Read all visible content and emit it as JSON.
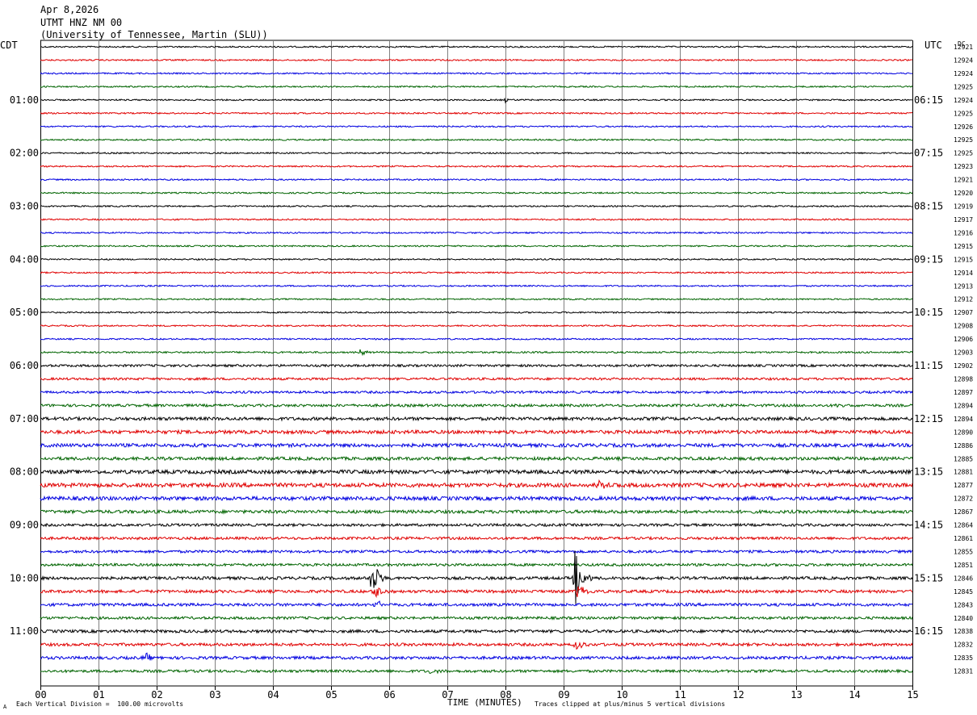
{
  "header": {
    "date": "Apr 8,2026",
    "station": "UTMT HNZ NM 00",
    "network": "(University of Tennessee, Martin (SLU))"
  },
  "left_axis_label": "CDT",
  "right_axis_label": "UTC",
  "dc_label": "DC",
  "footer": {
    "scale_note": "Each Vertical Division =  100.00 microvolts",
    "xlabel": "TIME (MINUTES)",
    "clip_note": "Traces clipped at plus/minus 5 vertical divisions",
    "corner_mark": "A"
  },
  "colors": {
    "cycle": [
      "#000000",
      "#e00000",
      "#0000e0",
      "#006400"
    ],
    "grid": "#808080"
  },
  "chart_data": {
    "type": "line",
    "title": "UTMT HNZ NM 00",
    "xlabel": "TIME (MINUTES)",
    "xlim": [
      0,
      15
    ],
    "x_ticks": [
      "00",
      "01",
      "02",
      "03",
      "04",
      "05",
      "06",
      "07",
      "08",
      "09",
      "10",
      "11",
      "12",
      "13",
      "14",
      "15"
    ],
    "grid": true,
    "trace_count": 48,
    "left_time_labels": [
      {
        "trace": 4,
        "label": "01:00"
      },
      {
        "trace": 8,
        "label": "02:00"
      },
      {
        "trace": 12,
        "label": "03:00"
      },
      {
        "trace": 16,
        "label": "04:00"
      },
      {
        "trace": 20,
        "label": "05:00"
      },
      {
        "trace": 24,
        "label": "06:00"
      },
      {
        "trace": 28,
        "label": "07:00"
      },
      {
        "trace": 32,
        "label": "08:00"
      },
      {
        "trace": 36,
        "label": "09:00"
      },
      {
        "trace": 40,
        "label": "10:00"
      },
      {
        "trace": 44,
        "label": "11:00"
      }
    ],
    "right_time_labels": [
      {
        "trace": 4,
        "label": "06:15"
      },
      {
        "trace": 8,
        "label": "07:15"
      },
      {
        "trace": 12,
        "label": "08:15"
      },
      {
        "trace": 16,
        "label": "09:15"
      },
      {
        "trace": 20,
        "label": "10:15"
      },
      {
        "trace": 24,
        "label": "11:15"
      },
      {
        "trace": 28,
        "label": "12:15"
      },
      {
        "trace": 32,
        "label": "13:15"
      },
      {
        "trace": 36,
        "label": "14:15"
      },
      {
        "trace": 40,
        "label": "15:15"
      },
      {
        "trace": 44,
        "label": "16:15"
      }
    ],
    "dc_offsets": [
      12921,
      12924,
      12924,
      12925,
      12924,
      12925,
      12926,
      12925,
      12925,
      12923,
      12921,
      12920,
      12919,
      12917,
      12916,
      12915,
      12915,
      12914,
      12913,
      12912,
      12907,
      12908,
      12906,
      12903,
      12902,
      12898,
      12897,
      12894,
      12894,
      12890,
      12886,
      12885,
      12881,
      12877,
      12872,
      12867,
      12864,
      12861,
      12855,
      12851,
      12846,
      12845,
      12843,
      12840,
      12838,
      12832,
      12835,
      12831
    ],
    "noise_levels": [
      1,
      1,
      1,
      1,
      1,
      1,
      1,
      1,
      1,
      1,
      1,
      1,
      1,
      1,
      1,
      1,
      1,
      1,
      1,
      1,
      1,
      1,
      1,
      1.2,
      1.6,
      1.6,
      1.6,
      1.8,
      2.2,
      2.4,
      2.4,
      2.2,
      2.6,
      2.8,
      2.6,
      2.2,
      1.8,
      1.8,
      1.8,
      1.8,
      2.0,
      2.0,
      2.0,
      1.8,
      2.0,
      2.0,
      2.0,
      1.8
    ],
    "events": [
      {
        "trace": 4,
        "minute": 8.0,
        "amplitude": 3
      },
      {
        "trace": 23,
        "minute": 5.5,
        "amplitude": 4
      },
      {
        "trace": 27,
        "minute": 13.7,
        "amplitude": 4
      },
      {
        "trace": 33,
        "minute": 9.6,
        "amplitude": 6
      },
      {
        "trace": 40,
        "minute": 5.7,
        "amplitude": 30
      },
      {
        "trace": 40,
        "minute": 9.2,
        "amplitude": 38
      },
      {
        "trace": 41,
        "minute": 5.75,
        "amplitude": 12
      },
      {
        "trace": 41,
        "minute": 9.25,
        "amplitude": 12
      },
      {
        "trace": 42,
        "minute": 5.75,
        "amplitude": 8
      },
      {
        "trace": 45,
        "minute": 9.2,
        "amplitude": 8
      },
      {
        "trace": 46,
        "minute": 1.8,
        "amplitude": 6
      },
      {
        "trace": 47,
        "minute": 6.7,
        "amplitude": 4
      }
    ]
  }
}
